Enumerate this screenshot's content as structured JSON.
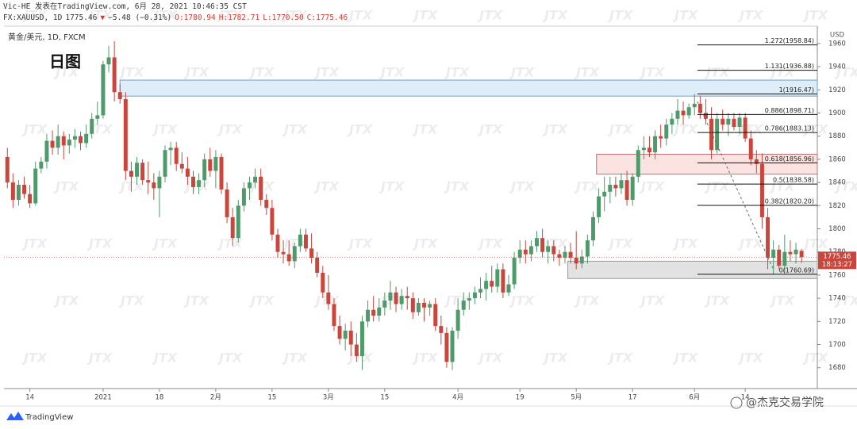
{
  "header": {
    "publisher": "Vic-HE 发表在TradingView.com, 6月 28, 2021 10:46:35 CST",
    "symbol": "FX:XAUUSD, 1D",
    "last": "1775.46",
    "arrow": "▼",
    "change": "−5.48 (−0.31%)",
    "ohlc": [
      "O:1780.94",
      "H:1782.71",
      "L:1770.50",
      "C:1775.46"
    ]
  },
  "chart_data": {
    "type": "candlestick",
    "title": "黄金/美元, 1D, FXCM",
    "subtitle": "日图",
    "y_unit": "USD",
    "price_tag": "1775.46",
    "countdown": "18:13:27",
    "watermark": "JTX",
    "brand": "TradingView",
    "credit": "@杰克交易学院",
    "up_color": "#4e9a6a",
    "down_color": "#c8463c",
    "grid": false,
    "ylim": [
      1662,
      1975
    ],
    "yticks": [
      1680,
      1700,
      1720,
      1740,
      1760,
      1780,
      1800,
      1820,
      1840,
      1860,
      1880,
      1900,
      1920,
      1940,
      1960
    ],
    "xlim": [
      -0.6,
      143.8
    ],
    "xticks": [
      {
        "value": 4,
        "label": "14"
      },
      {
        "value": 17,
        "label": "2021"
      },
      {
        "value": 27,
        "label": "18"
      },
      {
        "value": 37,
        "label": "2月"
      },
      {
        "value": 47,
        "label": "15"
      },
      {
        "value": 57,
        "label": "3月"
      },
      {
        "value": 67,
        "label": "15"
      },
      {
        "value": 80,
        "label": "4月"
      },
      {
        "value": 91,
        "label": "19"
      },
      {
        "value": 101,
        "label": "5月"
      },
      {
        "value": 111,
        "label": "17"
      },
      {
        "value": 122,
        "label": "6月"
      },
      {
        "value": 131,
        "label": "14"
      }
    ],
    "ohlc": [
      [
        1862,
        1870,
        1835,
        1840
      ],
      [
        1840,
        1848,
        1818,
        1825
      ],
      [
        1825,
        1842,
        1820,
        1838
      ],
      [
        1838,
        1845,
        1826,
        1830
      ],
      [
        1830,
        1838,
        1818,
        1822
      ],
      [
        1822,
        1858,
        1820,
        1852
      ],
      [
        1852,
        1862,
        1848,
        1858
      ],
      [
        1858,
        1882,
        1852,
        1876
      ],
      [
        1876,
        1885,
        1864,
        1870
      ],
      [
        1870,
        1890,
        1864,
        1880
      ],
      [
        1880,
        1884,
        1860,
        1872
      ],
      [
        1872,
        1882,
        1865,
        1877
      ],
      [
        1877,
        1886,
        1870,
        1880
      ],
      [
        1880,
        1884,
        1868,
        1874
      ],
      [
        1874,
        1890,
        1870,
        1882
      ],
      [
        1882,
        1900,
        1878,
        1895
      ],
      [
        1895,
        1910,
        1890,
        1898
      ],
      [
        1898,
        1945,
        1895,
        1942
      ],
      [
        1942,
        1958,
        1935,
        1948
      ],
      [
        1948,
        1962,
        1910,
        1918
      ],
      [
        1918,
        1925,
        1908,
        1912
      ],
      [
        1912,
        1918,
        1842,
        1850
      ],
      [
        1850,
        1858,
        1832,
        1845
      ],
      [
        1845,
        1862,
        1838,
        1857
      ],
      [
        1857,
        1860,
        1838,
        1842
      ],
      [
        1842,
        1858,
        1830,
        1840
      ],
      [
        1840,
        1848,
        1825,
        1835
      ],
      [
        1835,
        1850,
        1810,
        1845
      ],
      [
        1845,
        1872,
        1840,
        1868
      ],
      [
        1868,
        1875,
        1855,
        1870
      ],
      [
        1870,
        1875,
        1850,
        1856
      ],
      [
        1856,
        1866,
        1848,
        1852
      ],
      [
        1852,
        1862,
        1838,
        1845
      ],
      [
        1845,
        1850,
        1830,
        1836
      ],
      [
        1836,
        1848,
        1830,
        1842
      ],
      [
        1842,
        1865,
        1836,
        1860
      ],
      [
        1860,
        1870,
        1845,
        1850
      ],
      [
        1850,
        1868,
        1835,
        1862
      ],
      [
        1862,
        1865,
        1830,
        1834
      ],
      [
        1834,
        1840,
        1805,
        1810
      ],
      [
        1810,
        1818,
        1785,
        1792
      ],
      [
        1792,
        1825,
        1788,
        1820
      ],
      [
        1820,
        1840,
        1815,
        1835
      ],
      [
        1835,
        1845,
        1825,
        1840
      ],
      [
        1840,
        1852,
        1835,
        1845
      ],
      [
        1845,
        1852,
        1820,
        1825
      ],
      [
        1825,
        1830,
        1812,
        1818
      ],
      [
        1818,
        1825,
        1790,
        1795
      ],
      [
        1795,
        1800,
        1775,
        1780
      ],
      [
        1780,
        1790,
        1770,
        1778
      ],
      [
        1778,
        1790,
        1768,
        1772
      ],
      [
        1772,
        1788,
        1766,
        1785
      ],
      [
        1785,
        1800,
        1780,
        1795
      ],
      [
        1795,
        1800,
        1780,
        1783
      ],
      [
        1783,
        1796,
        1770,
        1775
      ],
      [
        1775,
        1780,
        1758,
        1762
      ],
      [
        1762,
        1768,
        1740,
        1745
      ],
      [
        1745,
        1760,
        1730,
        1735
      ],
      [
        1735,
        1740,
        1712,
        1716
      ],
      [
        1716,
        1725,
        1700,
        1705
      ],
      [
        1705,
        1718,
        1695,
        1712
      ],
      [
        1712,
        1720,
        1690,
        1700
      ],
      [
        1700,
        1710,
        1685,
        1690
      ],
      [
        1690,
        1725,
        1678,
        1720
      ],
      [
        1720,
        1738,
        1715,
        1730
      ],
      [
        1730,
        1742,
        1720,
        1725
      ],
      [
        1725,
        1740,
        1720,
        1732
      ],
      [
        1732,
        1745,
        1725,
        1738
      ],
      [
        1738,
        1755,
        1730,
        1745
      ],
      [
        1745,
        1750,
        1728,
        1735
      ],
      [
        1735,
        1748,
        1730,
        1742
      ],
      [
        1742,
        1750,
        1730,
        1740
      ],
      [
        1740,
        1745,
        1722,
        1728
      ],
      [
        1728,
        1740,
        1725,
        1736
      ],
      [
        1736,
        1740,
        1720,
        1732
      ],
      [
        1732,
        1738,
        1725,
        1735
      ],
      [
        1735,
        1740,
        1712,
        1716
      ],
      [
        1716,
        1725,
        1700,
        1710
      ],
      [
        1710,
        1715,
        1680,
        1685
      ],
      [
        1685,
        1715,
        1678,
        1712
      ],
      [
        1712,
        1740,
        1705,
        1730
      ],
      [
        1730,
        1745,
        1725,
        1738
      ],
      [
        1738,
        1745,
        1730,
        1740
      ],
      [
        1740,
        1750,
        1735,
        1745
      ],
      [
        1745,
        1758,
        1740,
        1748
      ],
      [
        1748,
        1762,
        1738,
        1755
      ],
      [
        1755,
        1768,
        1745,
        1750
      ],
      [
        1750,
        1770,
        1745,
        1765
      ],
      [
        1765,
        1770,
        1740,
        1745
      ],
      [
        1745,
        1760,
        1742,
        1752
      ],
      [
        1752,
        1780,
        1748,
        1775
      ],
      [
        1775,
        1790,
        1770,
        1782
      ],
      [
        1782,
        1790,
        1770,
        1778
      ],
      [
        1778,
        1790,
        1772,
        1785
      ],
      [
        1785,
        1798,
        1780,
        1792
      ],
      [
        1792,
        1800,
        1775,
        1780
      ],
      [
        1780,
        1790,
        1770,
        1785
      ],
      [
        1785,
        1790,
        1772,
        1778
      ],
      [
        1778,
        1782,
        1768,
        1775
      ],
      [
        1775,
        1785,
        1770,
        1780
      ],
      [
        1780,
        1788,
        1770,
        1775
      ],
      [
        1775,
        1798,
        1765,
        1770
      ],
      [
        1770,
        1782,
        1766,
        1776
      ],
      [
        1776,
        1795,
        1770,
        1790
      ],
      [
        1790,
        1815,
        1785,
        1810
      ],
      [
        1810,
        1835,
        1805,
        1828
      ],
      [
        1828,
        1845,
        1815,
        1832
      ],
      [
        1832,
        1845,
        1822,
        1838
      ],
      [
        1838,
        1845,
        1828,
        1835
      ],
      [
        1835,
        1848,
        1830,
        1842
      ],
      [
        1842,
        1850,
        1820,
        1825
      ],
      [
        1825,
        1848,
        1820,
        1845
      ],
      [
        1845,
        1872,
        1840,
        1868
      ],
      [
        1868,
        1880,
        1860,
        1870
      ],
      [
        1870,
        1880,
        1862,
        1866
      ],
      [
        1866,
        1885,
        1860,
        1880
      ],
      [
        1880,
        1890,
        1870,
        1878
      ],
      [
        1878,
        1895,
        1872,
        1890
      ],
      [
        1890,
        1900,
        1882,
        1895
      ],
      [
        1895,
        1912,
        1890,
        1902
      ],
      [
        1902,
        1910,
        1890,
        1898
      ],
      [
        1898,
        1908,
        1895,
        1905
      ],
      [
        1905,
        1916.47,
        1898,
        1908
      ],
      [
        1908,
        1915,
        1895,
        1900
      ],
      [
        1900,
        1912,
        1890,
        1895
      ],
      [
        1895,
        1905,
        1860,
        1868
      ],
      [
        1868,
        1900,
        1865,
        1895
      ],
      [
        1895,
        1903,
        1885,
        1890
      ],
      [
        1890,
        1900,
        1880,
        1895
      ],
      [
        1895,
        1900,
        1885,
        1888
      ],
      [
        1888,
        1900,
        1882,
        1896
      ],
      [
        1896,
        1900,
        1875,
        1878
      ],
      [
        1878,
        1885,
        1855,
        1860
      ],
      [
        1860,
        1868,
        1848,
        1856
      ],
      [
        1856,
        1865,
        1800,
        1810
      ],
      [
        1810,
        1818,
        1765,
        1775
      ],
      [
        1775,
        1790,
        1760.69,
        1782
      ],
      [
        1782,
        1786,
        1765,
        1768
      ],
      [
        1768,
        1795,
        1762,
        1780
      ],
      [
        1780,
        1790,
        1772,
        1778
      ],
      [
        1778,
        1788,
        1770,
        1782
      ],
      [
        1780.94,
        1782.71,
        1770.5,
        1775.46
      ]
    ],
    "zones": [
      {
        "top": 1928.4,
        "bottom": 1914.6,
        "start": 20,
        "color": "#ddeefa",
        "border": "#6a9fd0"
      },
      {
        "top": 1864.4,
        "bottom": 1847.2,
        "start": 104.6,
        "color": "#fbe3e1",
        "border": "#c07070"
      },
      {
        "top": 1772,
        "bottom": 1757,
        "start": 99.5,
        "color": "#e2e2e2",
        "border": "#9a9a9a"
      }
    ],
    "fib_start": 122.5,
    "fib_levels": [
      {
        "value": 1958.84,
        "label": "1.272(1958.84)"
      },
      {
        "value": 1936.88,
        "label": "1.131(1936.88)"
      },
      {
        "value": 1916.47,
        "label": "1(1916.47)"
      },
      {
        "value": 1898.71,
        "label": "0.886(1898.71)"
      },
      {
        "value": 1883.13,
        "label": "0.786(1883.13)"
      },
      {
        "value": 1856.96,
        "label": "0.618(1856.96)"
      },
      {
        "value": 1838.58,
        "label": "0.5(1838.58)"
      },
      {
        "value": 1820.2,
        "label": "0.382(1820.20)"
      },
      {
        "value": 1760.69,
        "label": "0(1760.69)"
      }
    ],
    "trend_line": {
      "x": [
        122.5,
        136
      ],
      "y": [
        1910,
        1765
      ]
    }
  }
}
